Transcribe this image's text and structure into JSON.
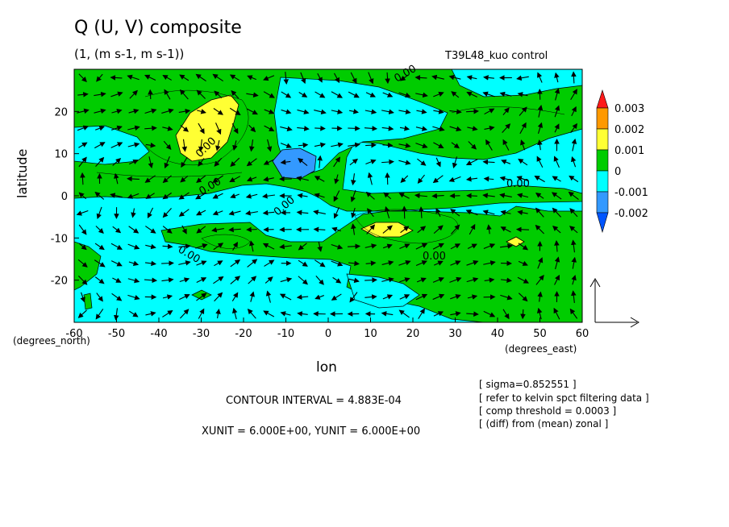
{
  "chart_data": {
    "type": "contour",
    "title": "Q (U, V) composite",
    "units": "(1, (m s-1, m s-1))",
    "run_label": "T39L48_kuo control",
    "xlabel": "lon",
    "ylabel": "latitude",
    "x_unit_note": "(degrees_east)",
    "y_unit_note": "(degrees_north)",
    "xlim": [
      -60,
      60
    ],
    "ylim": [
      -30,
      30
    ],
    "x_ticks": [
      -60,
      -50,
      -40,
      -30,
      -20,
      -10,
      0,
      10,
      20,
      30,
      40,
      50,
      60
    ],
    "x_tick_labels": [
      "-60",
      "-50",
      "-40",
      "-30",
      "-20",
      "-10",
      "0",
      "10",
      "20",
      "30",
      "40",
      "50",
      "60"
    ],
    "y_ticks": [
      20,
      10,
      0,
      -10,
      -20
    ],
    "y_tick_labels": [
      "20",
      "10",
      "0",
      "-10",
      "-20"
    ],
    "contour_labels": [
      "0.00",
      "0.00",
      "0.00",
      "0.00",
      "0.00",
      "0.00",
      "0.00"
    ],
    "colorbar": {
      "levels": [
        -0.002,
        -0.001,
        0,
        0.001,
        0.002,
        0.003
      ],
      "level_labels": [
        "-0.002",
        "-0.001",
        "0",
        "0.001",
        "0.002",
        "0.003"
      ],
      "colors": [
        "#ff1a1a",
        "#ff9900",
        "#ffff33",
        "#00cc00",
        "#00ffff",
        "#3399ff",
        "#0055ff"
      ]
    },
    "background_color": "#00ffff",
    "grid": false
  },
  "footer": {
    "contour_interval": "CONTOUR INTERVAL = 4.883E-04",
    "scale": "XUNIT = 6.000E+00, YUNIT = 6.000E+00",
    "notes": [
      "[ sigma=0.852551 ]",
      "[ refer to kelvin spct filtering data ]",
      "[ comp threshold = 0.0003 ]",
      "[ (diff) from (mean) zonal ]"
    ]
  }
}
